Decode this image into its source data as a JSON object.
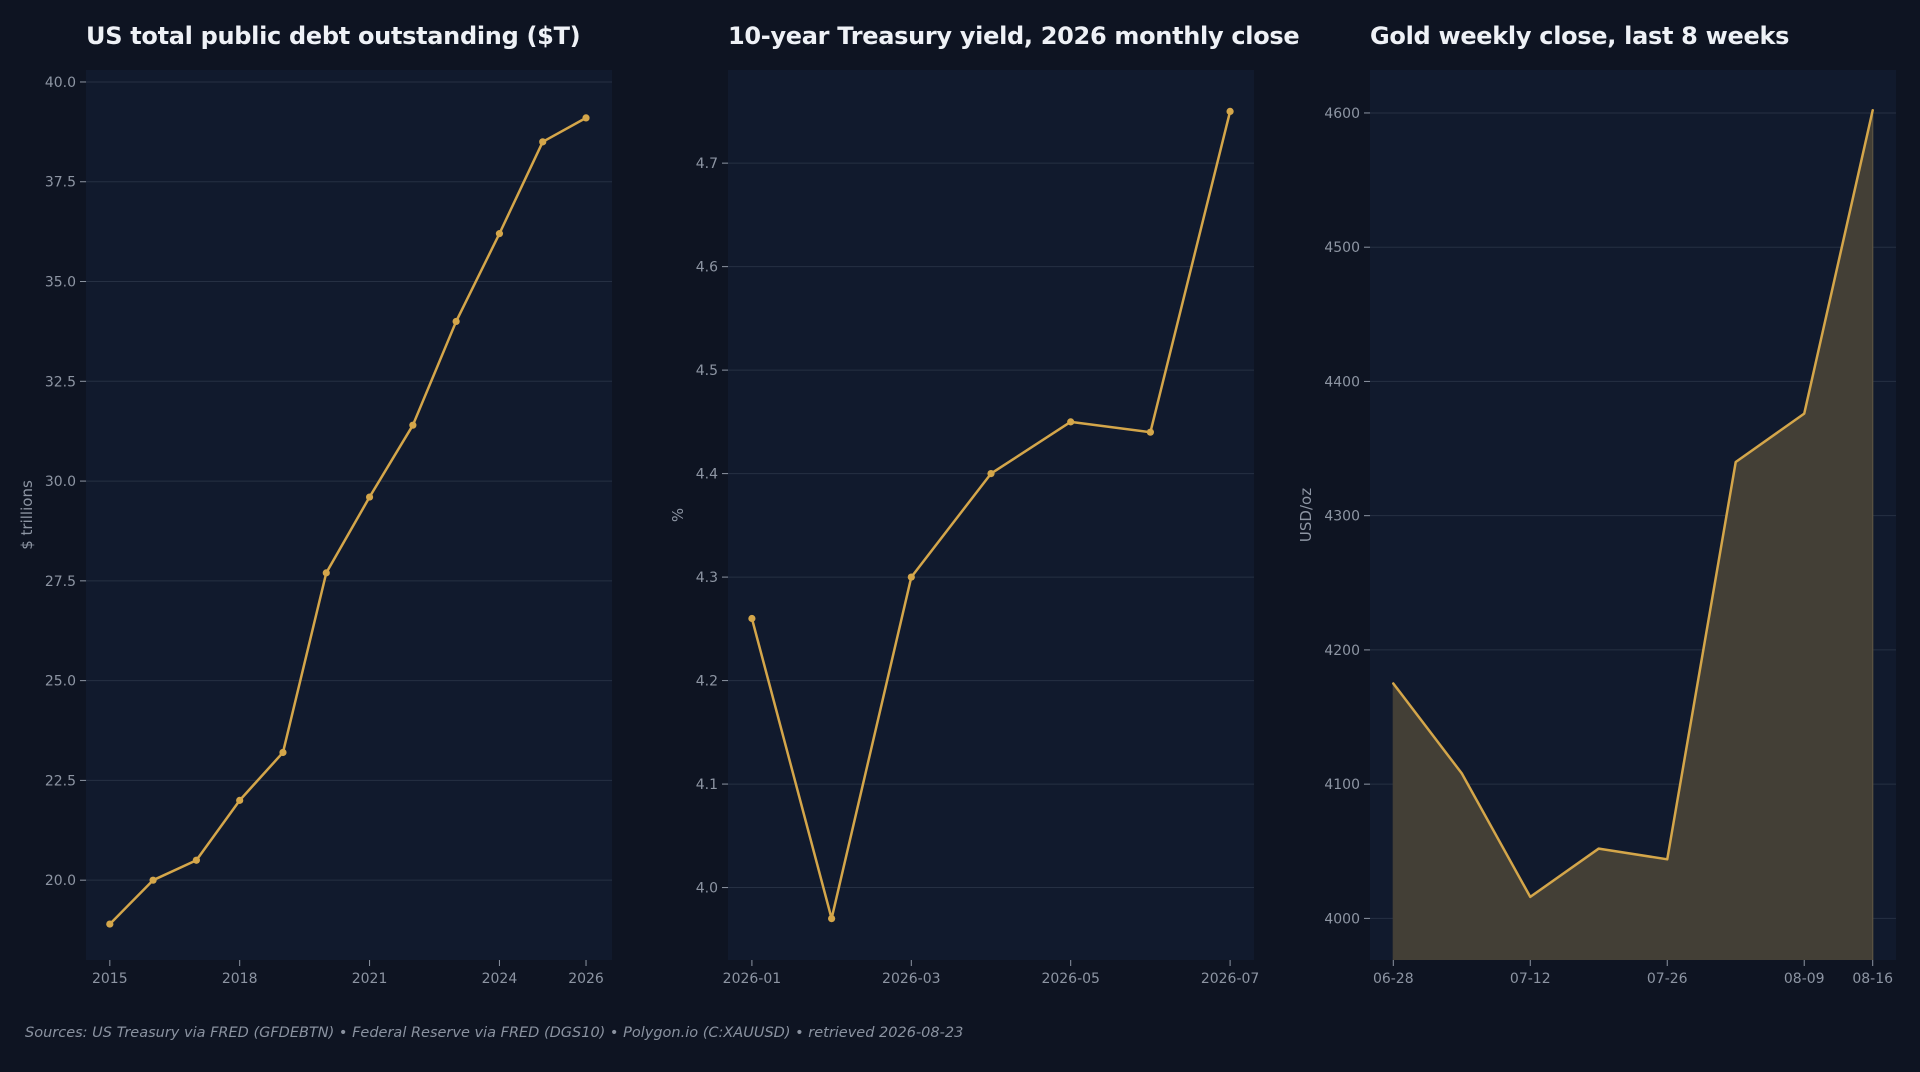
{
  "colors": {
    "background": "#0e1422",
    "plot_background": "#111a2d",
    "grid": "#263043",
    "line": "#d4a64a",
    "area_fill": "#433f36",
    "tick_text": "#8d95a3",
    "title_text": "#eef1f6"
  },
  "chart_data": [
    {
      "type": "line",
      "title": "US total public debt outstanding ($T)",
      "xlabel": "",
      "ylabel": "$ trillions",
      "x": [
        2015,
        2016,
        2017,
        2018,
        2019,
        2020,
        2021,
        2022,
        2023,
        2024,
        2025,
        2026
      ],
      "y": [
        18.9,
        20.0,
        20.5,
        22.0,
        23.2,
        27.7,
        29.6,
        31.4,
        34.0,
        36.2,
        38.5,
        39.1
      ],
      "xlim": [
        2014.45,
        2026.6
      ],
      "ylim": [
        18.0,
        40.3
      ],
      "x_ticks": [
        2015,
        2018,
        2021,
        2024,
        2026
      ],
      "x_tick_labels": [
        "2015",
        "2018",
        "2021",
        "2024",
        "2026"
      ],
      "y_ticks": [
        20.0,
        22.5,
        25.0,
        27.5,
        30.0,
        32.5,
        35.0,
        37.5,
        40.0
      ],
      "y_tick_labels": [
        "20.0",
        "22.5",
        "25.0",
        "27.5",
        "30.0",
        "32.5",
        "35.0",
        "37.5",
        "40.0"
      ],
      "markers": true,
      "filled": false,
      "grid": "horizontal"
    },
    {
      "type": "line",
      "title": "10-year Treasury yield, 2026 monthly close",
      "xlabel": "",
      "ylabel": "%",
      "x": [
        "2026-01",
        "2026-02",
        "2026-03",
        "2026-04",
        "2026-05",
        "2026-06",
        "2026-07"
      ],
      "y": [
        4.26,
        3.97,
        4.3,
        4.4,
        4.45,
        4.44,
        4.75
      ],
      "xlim": [
        -0.3,
        6.3
      ],
      "ylim": [
        3.93,
        4.79
      ],
      "x_ticks": [
        0,
        2,
        4,
        6
      ],
      "x_tick_labels": [
        "2026-01",
        "2026-03",
        "2026-05",
        "2026-07"
      ],
      "y_ticks": [
        4.0,
        4.1,
        4.2,
        4.3,
        4.4,
        4.5,
        4.6,
        4.7
      ],
      "y_tick_labels": [
        "4.0",
        "4.1",
        "4.2",
        "4.3",
        "4.4",
        "4.5",
        "4.6",
        "4.7"
      ],
      "markers": true,
      "filled": false,
      "grid": "horizontal"
    },
    {
      "type": "area",
      "title": "Gold weekly close, last 8 weeks",
      "xlabel": "",
      "ylabel": "USD/oz",
      "x": [
        "06-28",
        "07-05",
        "07-12",
        "07-19",
        "07-26",
        "08-02",
        "08-09",
        "08-16"
      ],
      "y": [
        4175,
        4108,
        4016,
        4052,
        4044,
        4340,
        4376,
        4602
      ],
      "xlim": [
        -0.34,
        7.34
      ],
      "ylim": [
        3969,
        4632
      ],
      "x_ticks": [
        0,
        2,
        4,
        6,
        7
      ],
      "x_tick_labels": [
        "06-28",
        "07-12",
        "07-26",
        "08-09",
        "08-16"
      ],
      "y_ticks": [
        4000,
        4100,
        4200,
        4300,
        4400,
        4500,
        4600
      ],
      "y_tick_labels": [
        "4000",
        "4100",
        "4200",
        "4300",
        "4400",
        "4500",
        "4600"
      ],
      "markers": false,
      "filled": true,
      "grid": "horizontal"
    }
  ],
  "footer": "Sources: US Treasury via FRED (GFDEBTN)  •  Federal Reserve via FRED (DGS10)  •  Polygon.io (C:XAUUSD)  •  retrieved 2026-08-23"
}
